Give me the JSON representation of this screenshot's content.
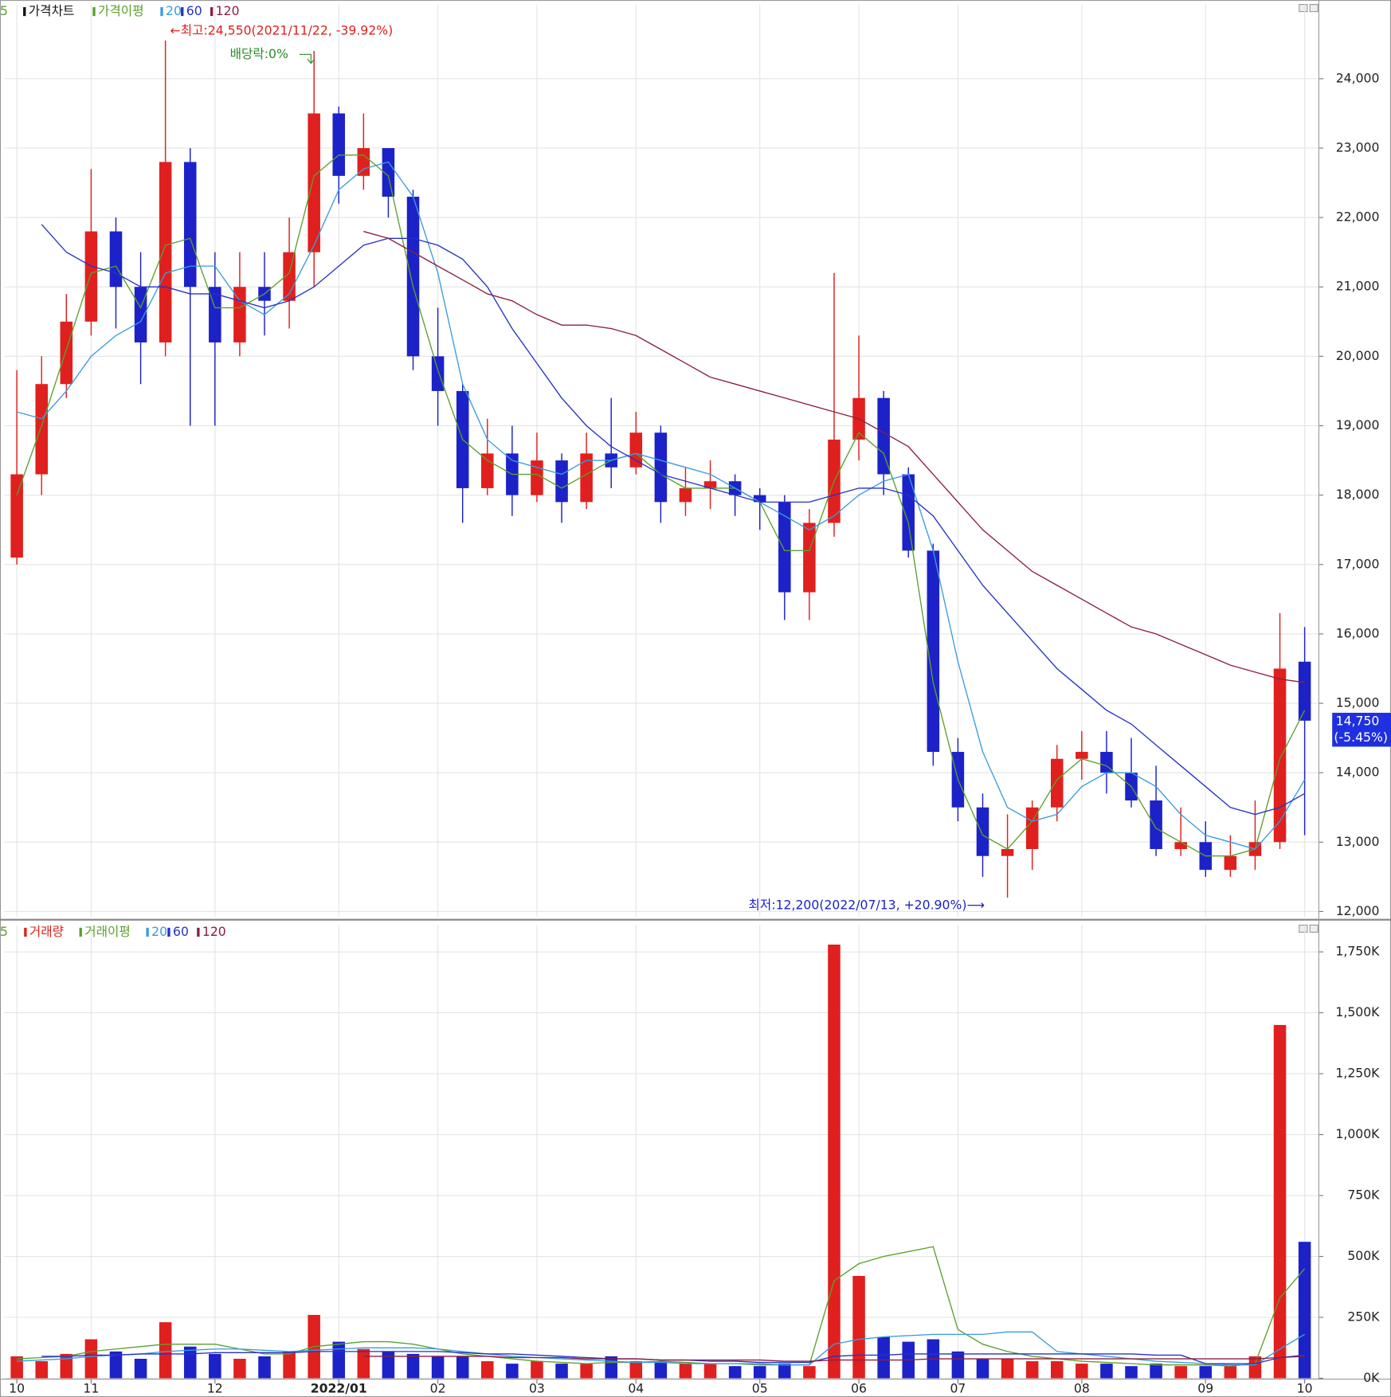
{
  "chart_data": [
    {
      "type": "candlestick",
      "title": "가격차트",
      "ma_title": "가격이평",
      "high_note": "←최고:24,550(2021/11/22, -39.92%)",
      "low_note": "최저:12,200(2022/07/13, +20.90%)⟶",
      "dividend_note": "배당락:0%",
      "last_price_label": "14,750",
      "last_change_label": "(-5.45%)",
      "up_color": "#e0201e",
      "down_color": "#1c22c8",
      "open": [
        17100,
        18300,
        19600,
        20500,
        21800,
        21000,
        20200,
        22800,
        21000,
        20200,
        21000,
        20800,
        21500,
        23500,
        22600,
        23000,
        22300,
        20000,
        19500,
        18100,
        18600,
        18000,
        18500,
        17900,
        18600,
        18400,
        18900,
        17900,
        18100,
        18200,
        18000,
        17900,
        16600,
        17600,
        18800,
        19400,
        18300,
        17200,
        14300,
        13500,
        12800,
        12900,
        13500,
        14200,
        14300,
        14000,
        13600,
        12900,
        13000,
        12600,
        12800,
        13000,
        15600
      ],
      "high": [
        19800,
        20000,
        20900,
        22700,
        22000,
        21500,
        24550,
        23000,
        21500,
        21500,
        21500,
        22000,
        24400,
        23600,
        23500,
        23000,
        22400,
        20700,
        19600,
        19100,
        19000,
        18900,
        18600,
        18900,
        19400,
        19200,
        19000,
        18400,
        18500,
        18300,
        18100,
        18000,
        17800,
        21200,
        20300,
        19500,
        18400,
        17300,
        14500,
        13700,
        13400,
        13600,
        14400,
        14600,
        14600,
        14500,
        14100,
        13500,
        13300,
        13100,
        13600,
        16300,
        16100
      ],
      "low": [
        17000,
        18000,
        19400,
        20300,
        20400,
        19600,
        20000,
        19000,
        19000,
        20000,
        20300,
        20400,
        21000,
        22200,
        22400,
        22000,
        19800,
        19000,
        17600,
        18000,
        17700,
        17900,
        17600,
        17800,
        18100,
        18300,
        17600,
        17700,
        17800,
        17700,
        17500,
        16200,
        16200,
        17400,
        18500,
        18000,
        17100,
        14100,
        13300,
        12500,
        12200,
        12600,
        13300,
        13900,
        13700,
        13500,
        12800,
        12800,
        12500,
        12500,
        12600,
        12900,
        13100
      ],
      "close": [
        18300,
        19600,
        20500,
        21800,
        21000,
        20200,
        22800,
        21000,
        20200,
        21000,
        20800,
        21500,
        23500,
        22600,
        23000,
        22300,
        20000,
        19500,
        18100,
        18600,
        18000,
        18500,
        17900,
        18600,
        18400,
        18900,
        17900,
        18100,
        18200,
        18000,
        17900,
        16600,
        17600,
        18800,
        19400,
        18300,
        17200,
        14300,
        13500,
        12800,
        12900,
        13500,
        14200,
        14300,
        14000,
        13600,
        12900,
        13000,
        12600,
        12800,
        13000,
        15500,
        14750
      ],
      "series": [
        {
          "name": "5",
          "color": "#5aa02c",
          "values": [
            18000,
            19000,
            20100,
            21200,
            21300,
            20700,
            21600,
            21700,
            20700,
            20700,
            20900,
            21200,
            22600,
            22900,
            22900,
            22600,
            21000,
            19800,
            18800,
            18500,
            18300,
            18300,
            18100,
            18300,
            18500,
            18600,
            18300,
            18100,
            18100,
            18100,
            17900,
            17200,
            17200,
            18200,
            18900,
            18600,
            17600,
            15300,
            13900,
            13100,
            12900,
            13300,
            13900,
            14200,
            14100,
            13800,
            13200,
            13000,
            12800,
            12800,
            12900,
            14200,
            14900
          ]
        },
        {
          "name": "20",
          "color": "#3a9be0",
          "values": [
            19200,
            19100,
            19500,
            20000,
            20300,
            20500,
            21200,
            21300,
            21300,
            20800,
            20600,
            20900,
            21600,
            22400,
            22700,
            22800,
            22300,
            21200,
            19600,
            18800,
            18500,
            18400,
            18300,
            18500,
            18500,
            18600,
            18500,
            18400,
            18300,
            18100,
            17900,
            17700,
            17500,
            17700,
            18000,
            18200,
            18300,
            17200,
            15600,
            14300,
            13500,
            13300,
            13400,
            13800,
            14000,
            14000,
            13800,
            13400,
            13100,
            13000,
            12900,
            13300,
            13900
          ]
        },
        {
          "name": "60",
          "color": "#2630c8",
          "values": [
            null,
            21900,
            21500,
            21300,
            21200,
            21000,
            21000,
            20900,
            20900,
            20800,
            20700,
            20800,
            21000,
            21300,
            21600,
            21700,
            21700,
            21600,
            21400,
            21000,
            20400,
            19900,
            19400,
            19000,
            18700,
            18500,
            18300,
            18200,
            18100,
            18000,
            17900,
            17900,
            17900,
            18000,
            18100,
            18100,
            18000,
            17700,
            17200,
            16700,
            16300,
            15900,
            15500,
            15200,
            14900,
            14700,
            14400,
            14100,
            13800,
            13500,
            13400,
            13500,
            13700
          ]
        },
        {
          "name": "120",
          "color": "#8a2040",
          "values": [
            null,
            null,
            null,
            null,
            null,
            null,
            null,
            null,
            null,
            null,
            null,
            null,
            null,
            null,
            21800,
            21700,
            21500,
            21300,
            21100,
            20900,
            20800,
            20600,
            20450,
            20450,
            20400,
            20300,
            20100,
            19900,
            19700,
            19600,
            19500,
            19400,
            19300,
            19200,
            19100,
            18900,
            18700,
            18300,
            17900,
            17500,
            17200,
            16900,
            16700,
            16500,
            16300,
            16100,
            16000,
            15850,
            15700,
            15550,
            15450,
            15350,
            15300
          ]
        }
      ],
      "ylim": [
        11920,
        25070
      ],
      "yticks": [
        {
          "value": 12000,
          "label": "12,000"
        },
        {
          "value": 13000,
          "label": "13,000"
        },
        {
          "value": 14000,
          "label": "14,000"
        },
        {
          "value": 15000,
          "label": "15,000"
        },
        {
          "value": 16000,
          "label": "16,000"
        },
        {
          "value": 17000,
          "label": "17,000"
        },
        {
          "value": 18000,
          "label": "18,000"
        },
        {
          "value": 19000,
          "label": "19,000"
        },
        {
          "value": 20000,
          "label": "20,000"
        },
        {
          "value": 21000,
          "label": "21,000"
        },
        {
          "value": 22000,
          "label": "22,000"
        },
        {
          "value": 23000,
          "label": "23,000"
        },
        {
          "value": 24000,
          "label": "24,000"
        }
      ],
      "grid": true
    },
    {
      "type": "bar",
      "title": "거래량",
      "ma_title": "거래이평",
      "categories": [
        "10",
        null,
        null,
        "11",
        null,
        null,
        null,
        null,
        "12",
        null,
        null,
        null,
        null,
        "2022/01",
        null,
        null,
        null,
        "02",
        null,
        null,
        null,
        "03",
        null,
        null,
        null,
        "04",
        null,
        null,
        null,
        null,
        "05",
        null,
        null,
        null,
        "06",
        null,
        null,
        null,
        "07",
        null,
        null,
        null,
        null,
        "08",
        null,
        null,
        null,
        null,
        "09",
        null,
        null,
        null,
        "10"
      ],
      "values": [
        90,
        70,
        100,
        160,
        110,
        80,
        230,
        130,
        100,
        80,
        90,
        110,
        260,
        150,
        120,
        110,
        100,
        90,
        90,
        70,
        60,
        70,
        60,
        60,
        90,
        70,
        70,
        60,
        60,
        50,
        50,
        60,
        50,
        1780,
        420,
        170,
        150,
        160,
        110,
        80,
        80,
        70,
        70,
        60,
        60,
        50,
        60,
        50,
        50,
        50,
        90,
        1450,
        560
      ],
      "series": [
        {
          "name": "5",
          "color": "#5aa02c",
          "values": [
            80,
            85,
            90,
            110,
            120,
            130,
            140,
            140,
            140,
            120,
            100,
            100,
            130,
            140,
            150,
            150,
            140,
            120,
            100,
            90,
            80,
            70,
            65,
            60,
            65,
            65,
            70,
            65,
            60,
            60,
            55,
            55,
            55,
            400,
            470,
            500,
            520,
            540,
            200,
            140,
            110,
            90,
            80,
            70,
            65,
            60,
            55,
            55,
            55,
            50,
            60,
            330,
            450
          ]
        },
        {
          "name": "20",
          "color": "#3a9be0",
          "values": [
            70,
            75,
            80,
            90,
            95,
            100,
            110,
            115,
            120,
            120,
            115,
            110,
            115,
            120,
            125,
            125,
            125,
            120,
            110,
            100,
            90,
            85,
            80,
            75,
            70,
            65,
            65,
            60,
            60,
            60,
            60,
            55,
            55,
            140,
            160,
            170,
            175,
            180,
            180,
            180,
            190,
            190,
            110,
            100,
            90,
            80,
            70,
            65,
            60,
            55,
            55,
            120,
            180
          ]
        },
        {
          "name": "60",
          "color": "#2630c8",
          "values": [
            null,
            90,
            90,
            95,
            95,
            100,
            100,
            100,
            105,
            105,
            105,
            105,
            110,
            110,
            110,
            110,
            110,
            110,
            105,
            100,
            100,
            95,
            90,
            85,
            80,
            80,
            75,
            75,
            70,
            70,
            65,
            65,
            65,
            90,
            95,
            95,
            100,
            100,
            100,
            100,
            100,
            100,
            100,
            100,
            100,
            100,
            95,
            95,
            60,
            60,
            60,
            85,
            95
          ]
        },
        {
          "name": "120",
          "color": "#8a2040",
          "values": [
            null,
            null,
            null,
            null,
            null,
            null,
            null,
            null,
            null,
            null,
            null,
            null,
            null,
            null,
            90,
            90,
            90,
            90,
            90,
            90,
            85,
            85,
            85,
            80,
            80,
            80,
            75,
            75,
            75,
            75,
            75,
            70,
            70,
            75,
            75,
            75,
            75,
            80,
            80,
            80,
            80,
            80,
            80,
            80,
            80,
            80,
            80,
            80,
            80,
            80,
            80,
            85,
            90
          ]
        }
      ],
      "ylim": [
        0,
        1860
      ],
      "yticks": [
        {
          "value": 0,
          "label": "0K"
        },
        {
          "value": 250,
          "label": "250K"
        },
        {
          "value": 500,
          "label": "500K"
        },
        {
          "value": 750,
          "label": "750K"
        },
        {
          "value": 1000,
          "label": "1,000K"
        },
        {
          "value": 1250,
          "label": "1,250K"
        },
        {
          "value": 1500,
          "label": "1,500K"
        },
        {
          "value": 1750,
          "label": "1,750K"
        }
      ],
      "grid": true
    }
  ]
}
